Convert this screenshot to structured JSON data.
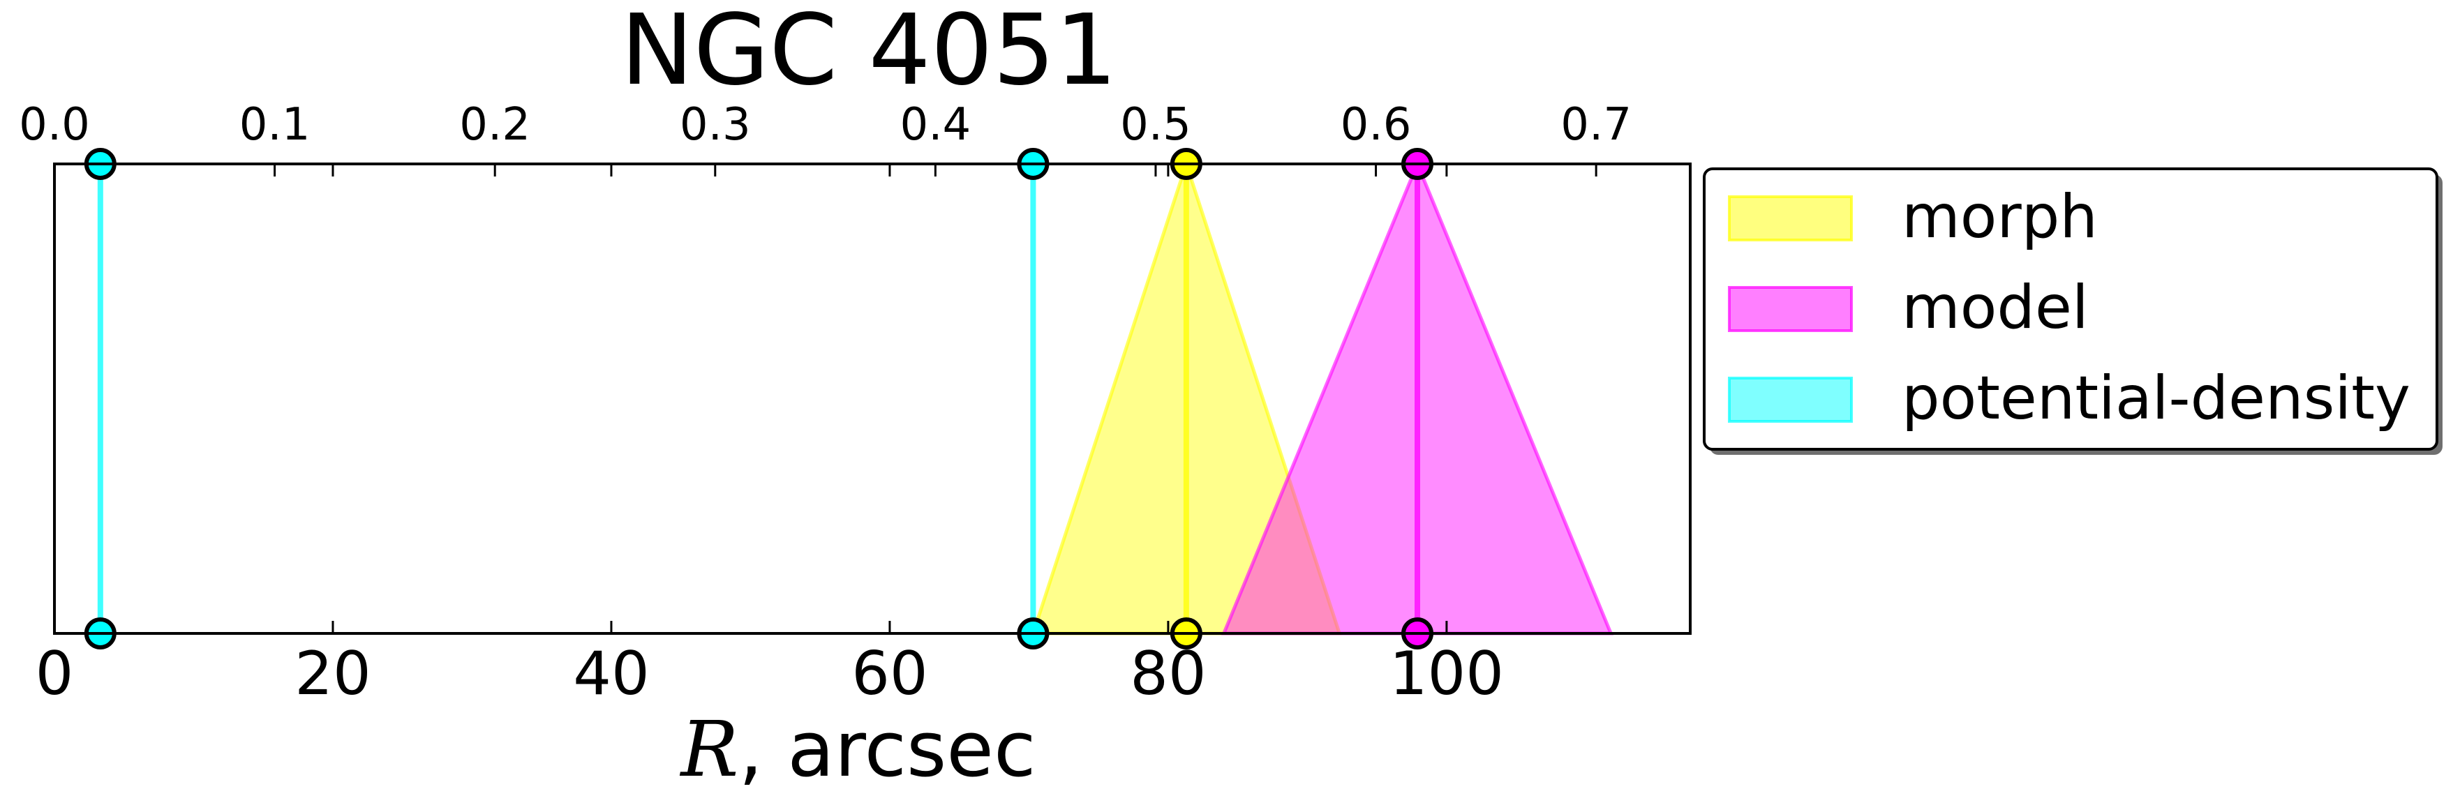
{
  "chart_data": {
    "type": "area",
    "title": "NGC 4051",
    "xlabel_var": "R",
    "xlabel_rest": ", arcsec",
    "xlim": [
      0,
      117.5
    ],
    "x_ticks": [
      "0",
      "20",
      "40",
      "60",
      "80",
      "100"
    ],
    "x_tick_values": [
      0,
      20,
      40,
      60,
      80,
      100
    ],
    "top_axis": {
      "ticks": [
        "0.0",
        "0.1",
        "0.2",
        "0.3",
        "0.4",
        "0.5",
        "0.6",
        "0.7"
      ],
      "tick_values": [
        0.0,
        0.1,
        0.2,
        0.3,
        0.4,
        0.5,
        0.6,
        0.7
      ],
      "arcsec_per_unit": 158.2
    },
    "y_ticks_shown": false,
    "legend_position": "right",
    "series": [
      {
        "name": "morph",
        "color": "#ffff00",
        "triangles": [
          {
            "peak": 81.3,
            "left": 70.3,
            "right": 92.3
          }
        ],
        "markers": [
          81.3
        ]
      },
      {
        "name": "model",
        "color": "#ff00ff",
        "triangles": [
          {
            "peak": 97.9,
            "left": 84.0,
            "right": 111.8
          }
        ],
        "markers": [
          97.9
        ]
      },
      {
        "name": "potential-density",
        "color": "#00ffff",
        "triangles": [],
        "markers": [
          3.3,
          70.3
        ]
      }
    ]
  }
}
